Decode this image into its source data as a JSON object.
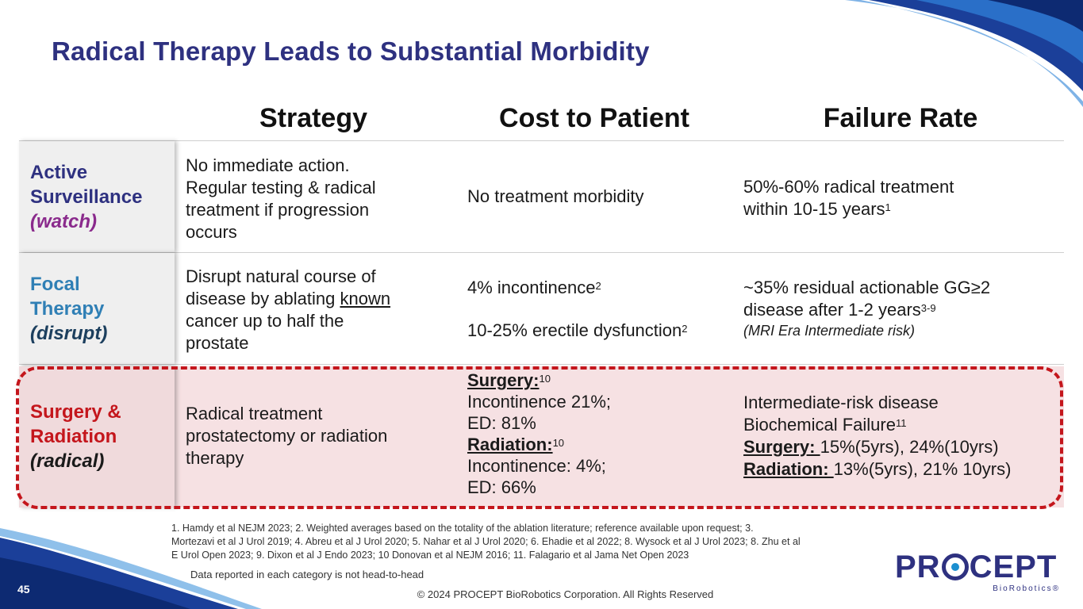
{
  "title": "Radical Therapy Leads to Substantial Morbidity",
  "headers": {
    "strategy": "Strategy",
    "cost": "Cost to Patient",
    "failure": "Failure Rate"
  },
  "rows": {
    "watch": {
      "label_line1": "Active",
      "label_line2": "Surveillance",
      "label_italic": "(watch)",
      "strategy": [
        "No immediate action.",
        "Regular testing & radical",
        "treatment if progression",
        "occurs"
      ],
      "cost": "No treatment morbidity",
      "failure_line1": "50%-60% radical treatment",
      "failure_line2": "within 10-15 years",
      "failure_sup": "1"
    },
    "disrupt": {
      "label_line1": "Focal",
      "label_line2": "Therapy",
      "label_italic": "(disrupt)",
      "strategy_line1": "Disrupt natural course of",
      "strategy_line2_pre": "disease by ablating ",
      "strategy_line2_underline": "known",
      "strategy_line3": "cancer up to half the",
      "strategy_line4": "prostate",
      "cost_1": "4% incontinence",
      "cost_1_sup": "2",
      "cost_2": "10-25% erectile dysfunction",
      "cost_2_sup": "2",
      "failure_line1": "~35% residual actionable GG≥2",
      "failure_line2": "disease after 1-2 years",
      "failure_sup": "3-9",
      "failure_note": "(MRI Era Intermediate risk)"
    },
    "radical": {
      "label_line1": "Surgery &",
      "label_line2": "Radiation",
      "label_italic": "(radical)",
      "strategy": [
        "Radical treatment",
        "prostatectomy or radiation",
        "therapy"
      ],
      "cost_surgery_label": "Surgery:",
      "cost_surgery_sup": "10",
      "cost_surgery_1": "Incontinence 21%;",
      "cost_surgery_2": "ED: 81%",
      "cost_radiation_label": "Radiation:",
      "cost_radiation_sup": "10",
      "cost_radiation_1": "Incontinence: 4%;",
      "cost_radiation_2": "ED: 66%",
      "failure_line1": "Intermediate-risk disease",
      "failure_line2": "Biochemical Failure",
      "failure_sup": "11",
      "failure_surgery_label": "Surgery: ",
      "failure_surgery_value": "15%(5yrs), 24%(10yrs)",
      "failure_radiation_label": "Radiation: ",
      "failure_radiation_value": "13%(5yrs), 21% 10yrs)"
    }
  },
  "footnotes": [
    "1. Hamdy et al NEJM 2023; 2. Weighted averages based on the totality of the ablation literature; reference available upon request; 3.",
    "Mortezavi et al  J Urol 2019; 4. Abreu et al J Urol 2020; 5. Nahar et al J Urol 2020; 6. Ehadie et al 2022; 8. Wysock et al J Urol 2023; 8. Zhu et al",
    "E Urol Open 2023; 9. Dixon et al J Endo 2023; 10 Donovan et al NEJM 2016; 11. Falagario et al Jama Net Open 2023"
  ],
  "disclaimer": "Data reported in each category is not head-to-head",
  "copyright": "© 2024 PROCEPT BioRobotics Corporation. All Rights Reserved",
  "page_number": "45",
  "logo": {
    "word_pre": "PR",
    "word_post": "CEPT",
    "sub": "BioRobotics®"
  },
  "colors": {
    "title": "#2e3180",
    "watch": "#2e3180",
    "watch_italic": "#8a2a8c",
    "disrupt": "#2f7fb5",
    "disrupt_italic": "#1c3f5e",
    "radical": "#c4161c",
    "radical_italic": "#1a1a1a",
    "dash": "#c4161c"
  }
}
